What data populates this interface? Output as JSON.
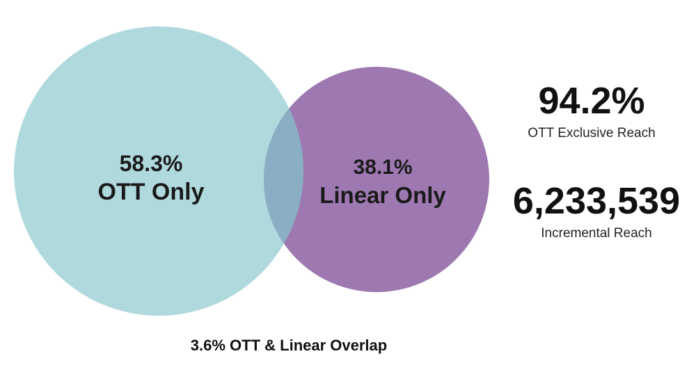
{
  "venn": {
    "ott": {
      "percent": "58.3%",
      "label": "OTT Only",
      "color": "#b0d9de"
    },
    "linear": {
      "percent": "38.1%",
      "label": "Linear Only",
      "color": "#9e79b1"
    },
    "overlap": {
      "color": "#8aaec3",
      "caption": "3.6% OTT & Linear Overlap"
    }
  },
  "stats": {
    "exclusive_reach": {
      "value": "94.2%",
      "caption": "OTT Exclusive Reach"
    },
    "incremental_reach": {
      "value": "6,233,539",
      "caption": "Incremental Reach"
    }
  }
}
